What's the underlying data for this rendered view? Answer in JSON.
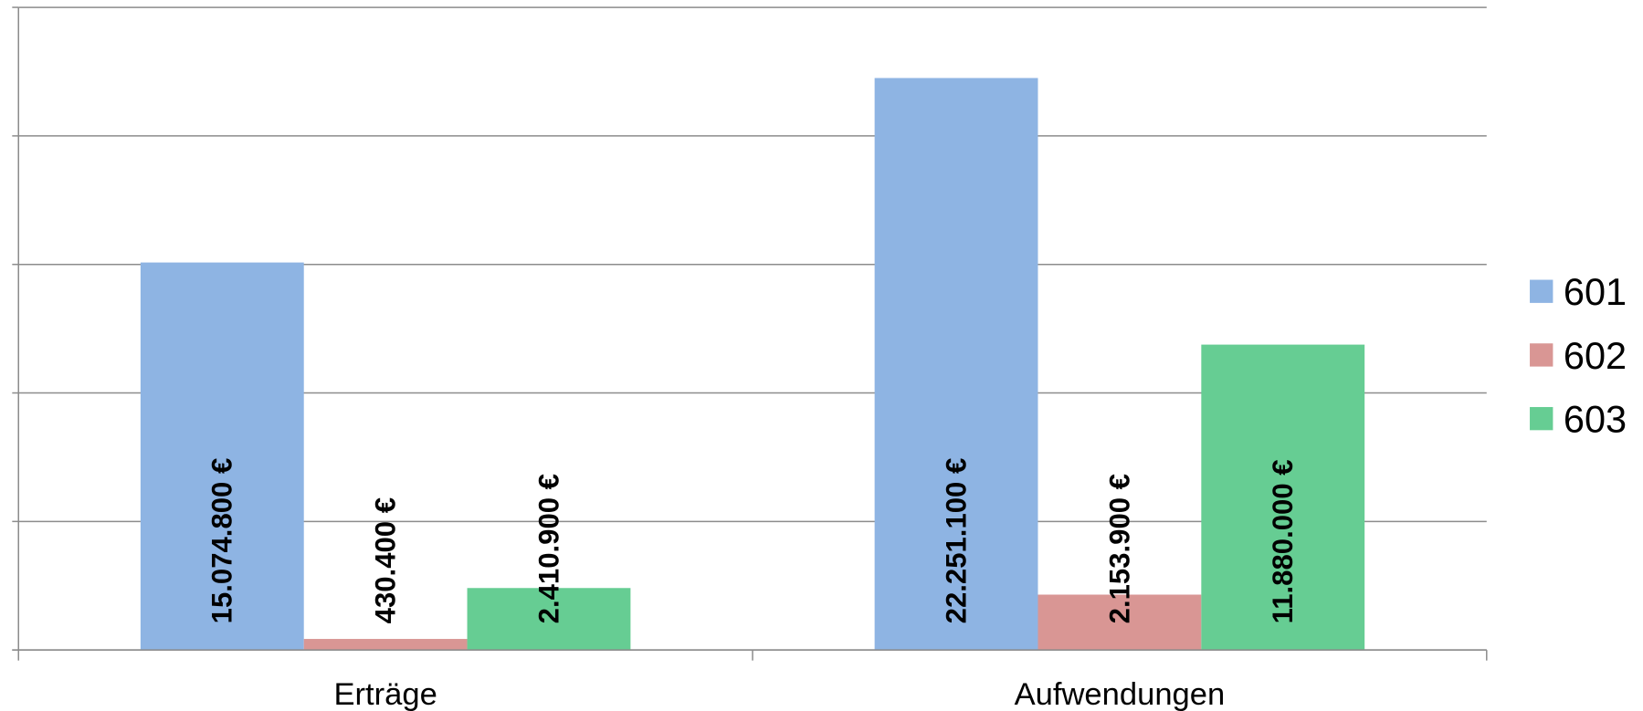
{
  "chart_data": {
    "type": "bar",
    "categories": [
      "Erträge",
      "Aufwendungen"
    ],
    "series": [
      {
        "name": "601",
        "color": "#8eb4e3",
        "values": [
          15074800,
          22251100
        ],
        "value_labels": [
          "15.074.800 €",
          "22.251.100 €"
        ]
      },
      {
        "name": "602",
        "color": "#d99694",
        "values": [
          430400,
          2153900
        ],
        "value_labels": [
          "430.400 €",
          "2.153.900 €"
        ]
      },
      {
        "name": "603",
        "color": "#66cd93",
        "values": [
          2410900,
          11880000
        ],
        "value_labels": [
          "2.410.900 €",
          "11.880.000 €"
        ]
      }
    ],
    "ylim": [
      0,
      25000000
    ],
    "yticks": [
      0,
      5000000,
      10000000,
      15000000,
      20000000,
      25000000
    ],
    "grid": true,
    "legend": "right"
  }
}
